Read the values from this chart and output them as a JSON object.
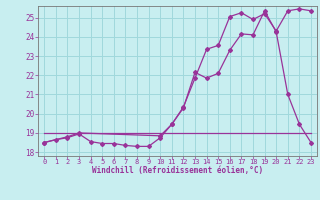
{
  "bg_color": "#c8eef0",
  "line_color": "#993399",
  "grid_color": "#a0d8dc",
  "xlabel": "Windchill (Refroidissement éolien,°C)",
  "xlim": [
    -0.5,
    23.5
  ],
  "ylim": [
    17.8,
    25.6
  ],
  "yticks": [
    18,
    19,
    20,
    21,
    22,
    23,
    24,
    25
  ],
  "xticks": [
    0,
    1,
    2,
    3,
    4,
    5,
    6,
    7,
    8,
    9,
    10,
    11,
    12,
    13,
    14,
    15,
    16,
    17,
    18,
    19,
    20,
    21,
    22,
    23
  ],
  "line1_x": [
    0,
    1,
    2,
    3,
    4,
    5,
    6,
    7,
    8,
    9,
    10,
    11,
    12,
    13,
    14,
    15,
    16,
    17,
    18,
    19,
    20,
    21,
    22,
    23
  ],
  "line1_y": [
    18.5,
    18.65,
    18.75,
    18.95,
    18.55,
    18.45,
    18.45,
    18.35,
    18.3,
    18.3,
    18.75,
    19.45,
    20.3,
    22.15,
    21.85,
    22.1,
    23.3,
    24.15,
    24.1,
    25.35,
    24.25,
    21.0,
    19.45,
    18.5
  ],
  "line2_x": [
    0,
    2,
    3,
    10,
    11,
    12,
    13,
    14,
    15,
    16,
    17,
    18,
    19,
    20,
    21,
    22,
    23
  ],
  "line2_y": [
    18.5,
    18.8,
    19.0,
    18.85,
    19.45,
    20.35,
    21.85,
    23.35,
    23.55,
    25.05,
    25.25,
    24.9,
    25.2,
    24.3,
    25.35,
    25.45,
    25.35
  ],
  "line3_x": [
    0,
    23
  ],
  "line3_y": [
    19.0,
    19.0
  ]
}
